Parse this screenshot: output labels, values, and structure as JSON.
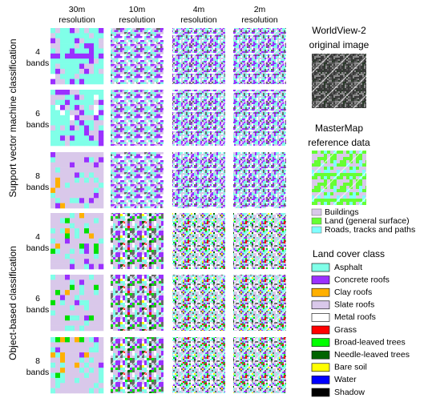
{
  "columns": [
    {
      "resolution": "30m",
      "label": "resolution"
    },
    {
      "resolution": "10m",
      "label": "resolution"
    },
    {
      "resolution": "4m",
      "label": "resolution"
    },
    {
      "resolution": "2m",
      "label": "resolution"
    }
  ],
  "groups": [
    {
      "title": "Support vector machine classification",
      "rows": [
        {
          "bands": "4",
          "label": "bands"
        },
        {
          "bands": "6",
          "label": "bands"
        },
        {
          "bands": "8",
          "label": "bands"
        }
      ]
    },
    {
      "title": "Object-based classification",
      "rows": [
        {
          "bands": "4",
          "label": "bands"
        },
        {
          "bands": "6",
          "label": "bands"
        },
        {
          "bands": "8",
          "label": "bands"
        }
      ]
    }
  ],
  "original": {
    "title": [
      "WorldView-2",
      "original image"
    ]
  },
  "reference": {
    "title": [
      "MasterMap",
      "reference data"
    ],
    "legend": [
      {
        "name": "Buildings",
        "color": "#d9c8ea"
      },
      {
        "name": "Land (general surface)",
        "color": "#66ff33"
      },
      {
        "name": "Roads, tracks and paths",
        "color": "#80ffff"
      }
    ]
  },
  "land_cover": {
    "title": "Land cover class",
    "classes": [
      {
        "name": "Asphalt",
        "color": "#80ffe8"
      },
      {
        "name": "Concrete roofs",
        "color": "#9b30ff"
      },
      {
        "name": "Clay roofs",
        "color": "#ffb000"
      },
      {
        "name": "Slate roofs",
        "color": "#d9c8ea"
      },
      {
        "name": "Metal roofs",
        "color": "#ffffff"
      },
      {
        "name": "Grass",
        "color": "#ff0000"
      },
      {
        "name": "Broad-leaved trees",
        "color": "#00ff00"
      },
      {
        "name": "Needle-leaved trees",
        "color": "#006400"
      },
      {
        "name": "Bare soil",
        "color": "#ffff00"
      },
      {
        "name": "Water",
        "color": "#0000ff"
      },
      {
        "name": "Shadow",
        "color": "#000000"
      }
    ]
  }
}
